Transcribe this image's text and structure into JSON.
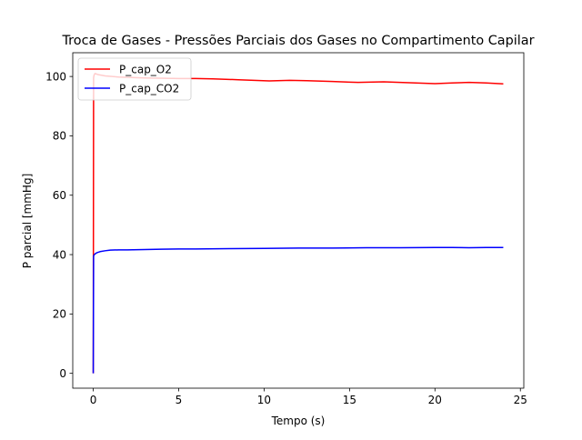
{
  "chart_data": {
    "type": "line",
    "title": "Troca de Gases - Pressões Parciais dos Gases no Compartimento Capilar",
    "xlabel": "Tempo (s)",
    "ylabel": "P parcial [mmHg]",
    "xlim": [
      -1.2,
      25.2
    ],
    "ylim": [
      -5,
      108
    ],
    "xticks": [
      0,
      5,
      10,
      15,
      20,
      25
    ],
    "yticks": [
      0,
      20,
      40,
      60,
      80,
      100
    ],
    "grid": false,
    "legend_position": "upper-left",
    "series": [
      {
        "name": "P_cap_O2",
        "color": "#ff0000",
        "x": [
          0,
          0.02,
          0.05,
          0.1,
          0.3,
          0.7,
          1.5,
          3,
          5,
          6,
          7,
          8.5,
          10.3,
          11.5,
          12.5,
          14,
          15.5,
          17,
          18.5,
          20,
          21,
          22,
          23,
          24
        ],
        "y": [
          0,
          99.6,
          100.5,
          101.0,
          100.6,
          100.2,
          99.8,
          99.5,
          99.3,
          99.3,
          99.2,
          98.9,
          98.5,
          98.7,
          98.6,
          98.3,
          98.0,
          98.2,
          97.9,
          97.6,
          97.8,
          98.0,
          97.8,
          97.5
        ]
      },
      {
        "name": "P_cap_CO2",
        "color": "#0000ff",
        "x": [
          0,
          0.02,
          0.05,
          0.1,
          0.2,
          0.4,
          0.7,
          1,
          1.5,
          2,
          3,
          4,
          5,
          6,
          8,
          10,
          12,
          14,
          16,
          18,
          20,
          21,
          22,
          23,
          24
        ],
        "y": [
          0,
          39.5,
          39.9,
          40.2,
          40.6,
          41.0,
          41.3,
          41.5,
          41.6,
          41.6,
          41.7,
          41.8,
          41.9,
          41.9,
          42.0,
          42.1,
          42.2,
          42.2,
          42.3,
          42.3,
          42.4,
          42.4,
          42.3,
          42.4,
          42.4
        ]
      }
    ]
  }
}
